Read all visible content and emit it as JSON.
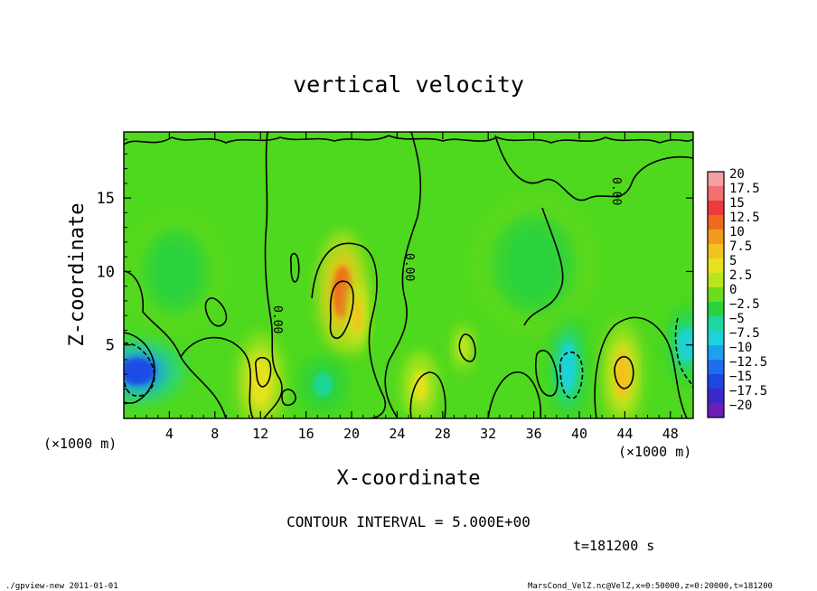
{
  "chart_data": {
    "type": "heatmap",
    "title": "vertical velocity",
    "xlabel": "X-coordinate",
    "ylabel": "Z-coordinate",
    "x_unit_left": "(×1000 m)",
    "x_unit_right": "(×1000 m)",
    "xlim": [
      0,
      50
    ],
    "ylim": [
      0,
      19.5
    ],
    "x_ticks": [
      "4",
      "8",
      "12",
      "16",
      "20",
      "24",
      "28",
      "32",
      "36",
      "40",
      "44",
      "48"
    ],
    "x_tick_values": [
      4,
      8,
      12,
      16,
      20,
      24,
      28,
      32,
      36,
      40,
      44,
      48
    ],
    "y_ticks": [
      "5",
      "10",
      "15"
    ],
    "y_tick_values": [
      5,
      10,
      15
    ],
    "colorbar": {
      "labels": [
        "20",
        "17.5",
        "15",
        "12.5",
        "10",
        "7.5",
        "5",
        "2.5",
        "0",
        "−2.5",
        "−5",
        "−7.5",
        "−10",
        "−12.5",
        "−15",
        "−17.5",
        "−20"
      ],
      "colors": [
        "#f5a0a0",
        "#f27070",
        "#ee3a3a",
        "#f06a1e",
        "#f29a1e",
        "#f2c21e",
        "#e6e21e",
        "#b6e61e",
        "#6edc1e",
        "#2ad23c",
        "#1ed7a0",
        "#1ed2dc",
        "#1ea0f0",
        "#1e6ef0",
        "#1e46e6",
        "#3c28c8",
        "#6a1eb4"
      ]
    },
    "features": [
      {
        "x": 19.2,
        "z": 8.6,
        "value": 12
      },
      {
        "x": 20.5,
        "z": 7.0,
        "value": 8
      },
      {
        "x": 43.8,
        "z": 3.0,
        "value": 8
      },
      {
        "x": 12.0,
        "z": 2.5,
        "value": 6
      },
      {
        "x": 26.0,
        "z": 2.2,
        "value": 4
      },
      {
        "x": 29.8,
        "z": 4.8,
        "value": 3
      },
      {
        "x": 1.2,
        "z": 3.2,
        "value": -16
      },
      {
        "x": 39.0,
        "z": 3.5,
        "value": -8
      },
      {
        "x": 17.5,
        "z": 2.3,
        "value": -5
      },
      {
        "x": 49.4,
        "z": 5.0,
        "value": -7
      },
      {
        "x": 36.0,
        "z": 10.5,
        "value": -3
      },
      {
        "x": 4.5,
        "z": 10.0,
        "value": -3
      }
    ],
    "contour_labels": [
      "0.00",
      "0.00",
      "0.00"
    ],
    "contour_interval": "CONTOUR INTERVAL = 5.000E+00",
    "time_label": "t=181200 s"
  },
  "footer": {
    "left": "./gpview-new  2011-01-01",
    "right": "MarsCond_VelZ.nc@VelZ,x=0:50000,z=0:20000,t=181200"
  }
}
